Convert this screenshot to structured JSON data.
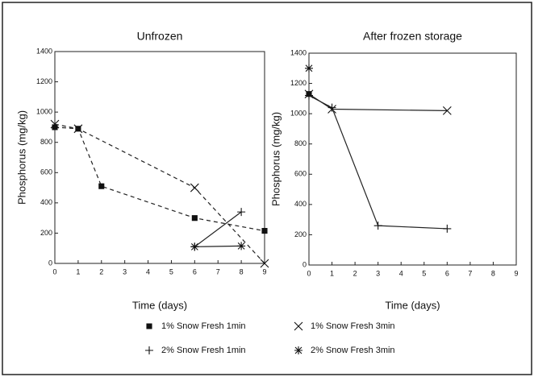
{
  "chart_data": [
    {
      "type": "line",
      "title": "Unfrozen",
      "xlabel": "Time (days)",
      "ylabel": "Phosphorus (mg/kg)",
      "xlim": [
        0,
        9
      ],
      "xticks": [
        0,
        1,
        2,
        3,
        4,
        5,
        6,
        7,
        8,
        9
      ],
      "ylim": [
        0,
        1400
      ],
      "yticks": [
        0,
        200,
        400,
        600,
        800,
        1000,
        1200,
        1400
      ],
      "series": [
        {
          "name": "1% Snow Fresh 1min",
          "marker": "square",
          "dashed": true,
          "x": [
            0,
            1,
            2,
            6,
            9
          ],
          "values": [
            900,
            890,
            510,
            300,
            215
          ]
        },
        {
          "name": "1% Snow Fresh 3min",
          "marker": "x",
          "dashed": true,
          "x": [
            0,
            1,
            6,
            9
          ],
          "values": [
            920,
            890,
            500,
            0
          ]
        },
        {
          "name": "2% Snow Fresh 1min",
          "marker": "plus",
          "dashed": false,
          "x": [
            6,
            8
          ],
          "values": [
            110,
            340
          ]
        },
        {
          "name": "2% Snow Fresh 3min",
          "marker": "star",
          "dashed": false,
          "x": [
            6,
            8
          ],
          "values": [
            110,
            115
          ]
        }
      ]
    },
    {
      "type": "line",
      "title": "After frozen storage",
      "xlabel": "Time (days)",
      "ylabel": "Phosphorus (mg/kg)",
      "xlim": [
        0,
        9
      ],
      "xticks": [
        0,
        1,
        2,
        3,
        4,
        5,
        6,
        7,
        8,
        9
      ],
      "ylim": [
        0,
        1400
      ],
      "yticks": [
        0,
        200,
        400,
        600,
        800,
        1000,
        1200,
        1400
      ],
      "series": [
        {
          "name": "1% Snow Fresh 1min",
          "marker": "square",
          "dashed": false,
          "x": [
            0
          ],
          "values": [
            1130
          ]
        },
        {
          "name": "1% Snow Fresh 3min",
          "marker": "x",
          "dashed": false,
          "x": [
            0,
            1,
            6
          ],
          "values": [
            1130,
            1030,
            1020
          ]
        },
        {
          "name": "2% Snow Fresh 1min",
          "marker": "plus",
          "dashed": false,
          "x": [
            0,
            1,
            3,
            6
          ],
          "values": [
            1120,
            1040,
            260,
            240
          ]
        },
        {
          "name": "2% Snow Fresh 3min",
          "marker": "star",
          "dashed": false,
          "x": [
            0
          ],
          "values": [
            1300
          ]
        }
      ]
    }
  ]
}
